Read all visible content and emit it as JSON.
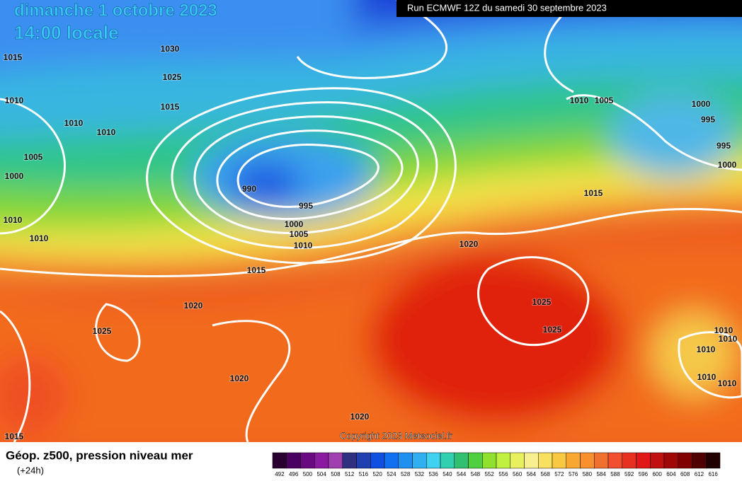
{
  "header": {
    "date": "dimanche 1 octobre 2023",
    "time": "14:00 locale",
    "run": "Run ECMWF 12Z du samedi 30 septembre 2023"
  },
  "copyright": "Copyright 2023 Meteociel.fr",
  "isobar_labels": [
    "1030",
    "1015",
    "1025",
    "1010",
    "1015",
    "1010",
    "1010",
    "1005",
    "1000",
    "990",
    "995",
    "1010",
    "1010",
    "1000",
    "1005",
    "1010",
    "1015",
    "1020",
    "1025",
    "1020",
    "1020",
    "1015",
    "1020",
    "1025",
    "1025",
    "1015",
    "1010",
    "1005",
    "1000",
    "995",
    "995",
    "1000",
    "1010",
    "1010",
    "1010",
    "1010",
    "1010"
  ],
  "legend": {
    "title": "Géop. z500, pression niveau mer",
    "subtitle": "(+24h)",
    "colors": [
      "#2a0030",
      "#4a0060",
      "#6a0a80",
      "#8a1aa0",
      "#a040b0",
      "#303080",
      "#2040b0",
      "#1050e0",
      "#1070f0",
      "#2090f0",
      "#30b0f0",
      "#40d0f0",
      "#30d0b0",
      "#30c070",
      "#50d040",
      "#90e030",
      "#c0f040",
      "#e8f060",
      "#f8f090",
      "#f8e060",
      "#f8c840",
      "#f8a830",
      "#f89030",
      "#f07030",
      "#f05030",
      "#e83020",
      "#e01818",
      "#c01010",
      "#a00808",
      "#800000",
      "#500000",
      "#200000"
    ],
    "labels": [
      "492",
      "496",
      "500",
      "504",
      "508",
      "512",
      "516",
      "520",
      "524",
      "528",
      "532",
      "536",
      "540",
      "544",
      "548",
      "552",
      "556",
      "560",
      "564",
      "568",
      "572",
      "576",
      "580",
      "584",
      "588",
      "592",
      "596",
      "600",
      "604",
      "608",
      "612",
      "616"
    ]
  }
}
